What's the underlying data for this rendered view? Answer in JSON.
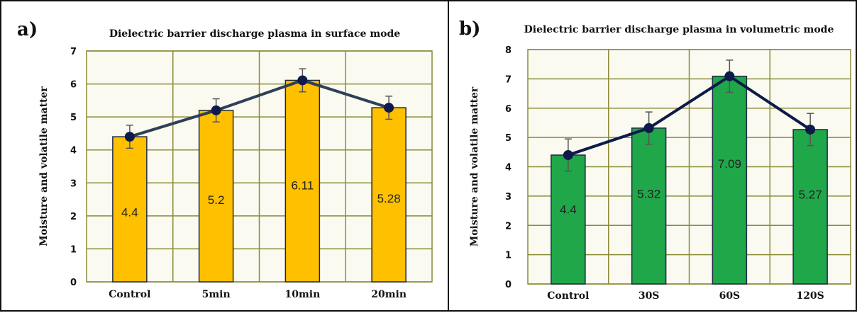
{
  "chart_data": [
    {
      "panel_letter": "a)",
      "type": "bar",
      "title": "Dielectric barrier discharge plasma in surface mode",
      "ylabel": "Moisture and volatile matter",
      "xlabel": "",
      "categories": [
        "Control",
        "5min",
        "10min",
        "20min"
      ],
      "values": [
        4.4,
        5.2,
        6.11,
        5.28
      ],
      "data_labels": [
        "4.4",
        "5.2",
        "6.11",
        "5.28"
      ],
      "error": [
        0.35,
        0.35,
        0.35,
        0.35
      ],
      "overlay_line": true,
      "ylim": [
        0,
        7
      ],
      "yticks": [
        "0",
        "1",
        "2",
        "3",
        "4",
        "5",
        "6",
        "7"
      ],
      "grid": true,
      "colors": {
        "bar": "#FFC000",
        "bar_edge": "#1F2A44",
        "line": "#2E4057",
        "marker": "#0E1A4A",
        "grid": "#8B8B3A",
        "plot_bg": "#FAFAF0"
      }
    },
    {
      "panel_letter": "b)",
      "type": "bar",
      "title": "Dielectric barrier discharge plasma in volumetric mode",
      "ylabel": "Moisture and volatile matter",
      "xlabel": "",
      "categories": [
        "Control",
        "30S",
        "60S",
        "120S"
      ],
      "values": [
        4.4,
        5.32,
        7.09,
        5.27
      ],
      "data_labels": [
        "4.4",
        "5.32",
        "7.09",
        "5.27"
      ],
      "error": [
        0.55,
        0.55,
        0.55,
        0.55
      ],
      "overlay_line": true,
      "ylim": [
        0,
        8
      ],
      "yticks": [
        "0",
        "1",
        "2",
        "3",
        "4",
        "5",
        "6",
        "7",
        "8"
      ],
      "grid": true,
      "colors": {
        "bar": "#1FA74A",
        "bar_edge": "#1F2A44",
        "line": "#0E1A4A",
        "marker": "#0E1A4A",
        "grid": "#8B8B3A",
        "plot_bg": "#FAFAF0"
      }
    }
  ]
}
